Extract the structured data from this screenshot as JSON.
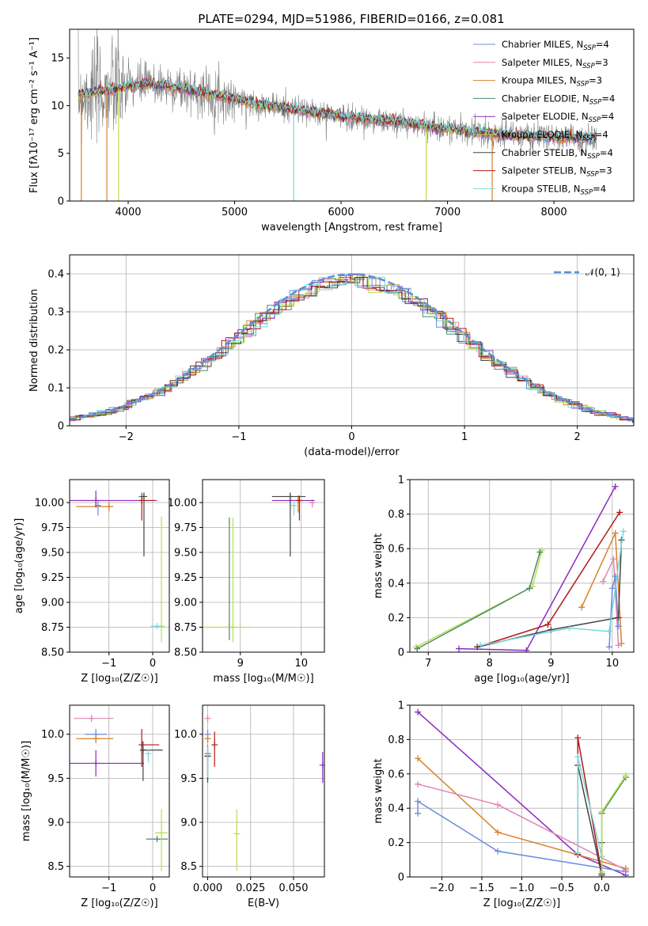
{
  "figure_title": "PLATE=0294, MJD=51986, FIBERID=0166, z=0.081",
  "colors": {
    "chabrier_miles": "#6a8fdb",
    "salpeter_miles": "#e383b4",
    "kroupa_miles": "#d9822b",
    "chabrier_elodie": "#4a8a6a",
    "salpeter_elodie": "#8a2bbf",
    "kroupa_elodie": "#b8e04a",
    "chabrier_stelib": "#444444",
    "salpeter_stelib": "#b01818",
    "kroupa_stelib": "#7ad8dc",
    "data": "#808080",
    "normal": "#5b8fd6"
  },
  "chart_data": [
    {
      "id": "spectrum",
      "type": "line",
      "title": "PLATE=0294, MJD=51986, FIBERID=0166, z=0.081",
      "xlabel": "wavelength [Angstrom, rest frame]",
      "ylabel": "Flux [fλ10⁻¹⁷ erg cm⁻² s⁻¹ A⁻¹]",
      "xlim": [
        3450,
        8750
      ],
      "ylim": [
        0,
        18
      ],
      "xticks": [
        4000,
        5000,
        6000,
        7000,
        8000
      ],
      "yticks": [
        0,
        5,
        10,
        15
      ],
      "grid": false,
      "legend_position": "top-right",
      "legend": [
        {
          "label": "Chabrier MILES, N",
          "sub": "SSP",
          "suffix": "=4",
          "color_key": "chabrier_miles"
        },
        {
          "label": "Salpeter MILES, N",
          "sub": "SSP",
          "suffix": "=3",
          "color_key": "salpeter_miles"
        },
        {
          "label": "Kroupa MILES, N",
          "sub": "SSP",
          "suffix": "=3",
          "color_key": "kroupa_miles"
        },
        {
          "label": "Chabrier ELODIE, N",
          "sub": "SSP",
          "suffix": "=4",
          "color_key": "chabrier_elodie"
        },
        {
          "label": "Salpeter ELODIE, N",
          "sub": "SSP",
          "suffix": "=4",
          "color_key": "salpeter_elodie"
        },
        {
          "label": "Kroupa ELODIE, N",
          "sub": "SSP",
          "suffix": "=4",
          "color_key": "kroupa_elodie"
        },
        {
          "label": "Chabrier STELIB, N",
          "sub": "SSP",
          "suffix": "=4",
          "color_key": "chabrier_stelib"
        },
        {
          "label": "Salpeter STELIB, N",
          "sub": "SSP",
          "suffix": "=3",
          "color_key": "salpeter_stelib"
        },
        {
          "label": "Kroupa STELIB, N",
          "sub": "SSP",
          "suffix": "=4",
          "color_key": "kroupa_stelib"
        }
      ],
      "continuum": {
        "x": [
          3550,
          3700,
          3850,
          4000,
          4200,
          4400,
          4600,
          4800,
          5000,
          5200,
          5400,
          5600,
          5800,
          6000,
          6200,
          6400,
          6600,
          6800,
          7000,
          7200,
          7400,
          7600,
          7800,
          8000,
          8300
        ],
        "y": [
          11.2,
          11.4,
          11.6,
          12.1,
          12.3,
          12.0,
          11.6,
          11.1,
          10.7,
          10.2,
          9.9,
          9.5,
          9.2,
          8.9,
          8.6,
          8.4,
          8.2,
          7.9,
          7.6,
          7.3,
          7.1,
          6.9,
          6.8,
          6.7,
          6.6
        ]
      }
    },
    {
      "id": "residuals",
      "type": "histogram",
      "xlabel": "(data-model)/error",
      "ylabel": "Normed distribution",
      "xlim": [
        -2.5,
        2.5
      ],
      "ylim": [
        0,
        0.45
      ],
      "xticks": [
        -2,
        -1,
        0,
        1,
        2
      ],
      "yticks": [
        0.0,
        0.1,
        0.2,
        0.3,
        0.4
      ],
      "grid": true,
      "legend_position": "top-right",
      "legend_label": "𝒩(0, 1)",
      "normal_mu": 0,
      "normal_sigma": 1
    },
    {
      "id": "age_vs_Z",
      "type": "scatter",
      "xlabel": "Z [log₁₀(Z/Z☉)]",
      "ylabel": "age  [log₁₀(age/yr)]",
      "xlim": [
        -1.9,
        0.38
      ],
      "ylim": [
        8.5,
        10.23
      ],
      "xticks": [
        -1,
        0
      ],
      "yticks": [
        8.5,
        8.75,
        9.0,
        9.25,
        9.5,
        9.75,
        10.0
      ],
      "ytick_labels": [
        "8.50",
        "8.75",
        "9.00",
        "9.25",
        "9.50",
        "9.75",
        "10.00"
      ],
      "grid": true,
      "points": [
        {
          "color_key": "chabrier_miles",
          "x": -1.25,
          "xerr": [
            0,
            0
          ],
          "y": 9.97,
          "yerr": [
            0.1,
            0.05
          ]
        },
        {
          "color_key": "salpeter_miles",
          "x": -1.3,
          "xerr": [
            0.5,
            0.2
          ],
          "y": 10.02,
          "yerr": [
            0,
            0
          ]
        },
        {
          "color_key": "kroupa_miles",
          "x": -1.0,
          "xerr": [
            0.75,
            0.1
          ],
          "y": 9.96,
          "yerr": [
            0.05,
            0.05
          ]
        },
        {
          "color_key": "chabrier_elodie",
          "x": -0.25,
          "xerr": [
            0,
            0
          ],
          "y": 10.06,
          "yerr": [
            0.02,
            0.04
          ]
        },
        {
          "color_key": "salpeter_elodie",
          "x": -1.3,
          "xerr": [
            0.6,
            1.4
          ],
          "y": 10.02,
          "yerr": [
            0.07,
            0.1
          ]
        },
        {
          "color_key": "kroupa_elodie",
          "x": 0.2,
          "xerr": [
            0.05,
            0.05
          ],
          "y": 8.76,
          "yerr": [
            0.16,
            1.1
          ]
        },
        {
          "color_key": "chabrier_stelib",
          "x": -0.2,
          "xerr": [
            0.05,
            0
          ],
          "y": 10.06,
          "yerr": [
            0.6,
            0.04
          ]
        },
        {
          "color_key": "salpeter_stelib",
          "x": -0.25,
          "xerr": [
            0,
            0.3
          ],
          "y": 10.02,
          "yerr": [
            0.2,
            0.04
          ]
        },
        {
          "color_key": "kroupa_stelib",
          "x": 0.1,
          "xerr": [
            0.15,
            0.1
          ],
          "y": 8.76,
          "yerr": [
            0,
            0
          ]
        }
      ]
    },
    {
      "id": "age_vs_mass",
      "type": "scatter",
      "xlabel": "mass [log₁₀(M/M☉)]",
      "xlim": [
        8.38,
        10.38
      ],
      "ylim": [
        8.5,
        10.23
      ],
      "xticks": [
        9,
        10
      ],
      "yticks": [
        8.5,
        8.75,
        9.0,
        9.25,
        9.5,
        9.75,
        10.0
      ],
      "ytick_labels": [
        "8.50",
        "8.75",
        "9.00",
        "9.25",
        "9.50",
        "9.75",
        "10.00"
      ],
      "grid": true,
      "points": [
        {
          "color_key": "chabrier_miles",
          "x": 9.95,
          "xerr": [
            0.05,
            0.05
          ],
          "y": 10.02,
          "yerr": [
            0,
            0
          ]
        },
        {
          "color_key": "salpeter_miles",
          "x": 10.18,
          "xerr": [
            0.03,
            0.03
          ],
          "y": 10.0,
          "yerr": [
            0.05,
            0.03
          ]
        },
        {
          "color_key": "kroupa_miles",
          "x": 9.95,
          "xerr": [
            0,
            0
          ],
          "y": 10.02,
          "yerr": [
            0.12,
            0.05
          ]
        },
        {
          "color_key": "chabrier_elodie",
          "x": 8.82,
          "xerr": [
            0,
            0
          ],
          "y": 8.75,
          "yerr": [
            0.13,
            1.1
          ]
        },
        {
          "color_key": "salpeter_elodie",
          "x": 9.82,
          "xerr": [
            0.3,
            0.4
          ],
          "y": 10.02,
          "yerr": [
            0,
            0
          ]
        },
        {
          "color_key": "kroupa_elodie",
          "x": 8.88,
          "xerr": [
            0.5,
            0.3
          ],
          "y": 8.75,
          "yerr": [
            0.15,
            1.1
          ]
        },
        {
          "color_key": "chabrier_stelib",
          "x": 9.82,
          "xerr": [
            0.3,
            0.25
          ],
          "y": 10.06,
          "yerr": [
            0.6,
            0.04
          ]
        },
        {
          "color_key": "salpeter_stelib",
          "x": 9.97,
          "xerr": [
            0,
            0
          ],
          "y": 10.02,
          "yerr": [
            0.2,
            0.05
          ]
        },
        {
          "color_key": "kroupa_stelib",
          "x": 9.88,
          "xerr": [
            0,
            0
          ],
          "y": 9.97,
          "yerr": [
            0.1,
            0.03
          ]
        }
      ]
    },
    {
      "id": "mass_weight_vs_age",
      "type": "line",
      "xlabel": "age  [log₁₀(age/yr)]",
      "ylabel": "mass weight",
      "xlim": [
        6.7,
        10.35
      ],
      "ylim": [
        0,
        1
      ],
      "xticks": [
        7,
        8,
        9,
        10
      ],
      "yticks": [
        0.0,
        0.2,
        0.4,
        0.6,
        0.8,
        1.0
      ],
      "grid": true,
      "series": [
        {
          "color_key": "kroupa_elodie",
          "x": [
            6.8,
            8.7,
            8.85
          ],
          "y": [
            0.03,
            0.38,
            0.59
          ]
        },
        {
          "color_key": "chabrier_elodie",
          "x": [
            6.82,
            8.65,
            8.82
          ],
          "y": [
            0.02,
            0.37,
            0.58
          ]
        },
        {
          "color_key": "salpeter_elodie",
          "x": [
            7.5,
            8.6,
            10.05
          ],
          "y": [
            0.02,
            0.01,
            0.96
          ]
        },
        {
          "color_key": "salpeter_stelib",
          "x": [
            7.8,
            8.95,
            10.12
          ],
          "y": [
            0.03,
            0.16,
            0.81
          ]
        },
        {
          "color_key": "kroupa_miles",
          "x": [
            9.5,
            10.05,
            10.15
          ],
          "y": [
            0.26,
            0.69,
            0.05
          ]
        },
        {
          "color_key": "salpeter_miles",
          "x": [
            9.85,
            10.02,
            10.1
          ],
          "y": [
            0.41,
            0.54,
            0.04
          ]
        },
        {
          "color_key": "chabrier_miles",
          "x": [
            9.95,
            10.0,
            10.05,
            10.1
          ],
          "y": [
            0.03,
            0.37,
            0.44,
            0.15
          ]
        },
        {
          "color_key": "chabrier_stelib",
          "x": [
            7.8,
            9.0,
            10.1,
            10.15
          ],
          "y": [
            0.03,
            0.13,
            0.2,
            0.65
          ]
        },
        {
          "color_key": "kroupa_stelib",
          "x": [
            7.85,
            9.3,
            9.95,
            10.18
          ],
          "y": [
            0.04,
            0.14,
            0.12,
            0.7
          ]
        }
      ]
    },
    {
      "id": "mass_vs_Z",
      "type": "scatter",
      "xlabel": "Z [log₁₀(Z/Z☉)]",
      "ylabel": "mass [log₁₀(M/M☉)]",
      "xlim": [
        -1.9,
        0.38
      ],
      "ylim": [
        8.38,
        10.33
      ],
      "xticks": [
        -1,
        0
      ],
      "yticks": [
        8.5,
        9.0,
        9.5,
        10.0
      ],
      "ytick_labels": [
        "8.5",
        "9.0",
        "9.5",
        "10.0"
      ],
      "grid": true,
      "points": [
        {
          "color_key": "chabrier_miles",
          "x": -1.3,
          "xerr": [
            0.25,
            0.25
          ],
          "y": 10.0,
          "yerr": [
            0.06,
            0.06
          ]
        },
        {
          "color_key": "salpeter_miles",
          "x": -1.4,
          "xerr": [
            0.4,
            0.5
          ],
          "y": 10.18,
          "yerr": [
            0.04,
            0.04
          ]
        },
        {
          "color_key": "kroupa_miles",
          "x": -1.3,
          "xerr": [
            0.45,
            0.4
          ],
          "y": 9.95,
          "yerr": [
            0.05,
            0.05
          ]
        },
        {
          "color_key": "chabrier_elodie",
          "x": 0.1,
          "xerr": [
            0.25,
            0.25
          ],
          "y": 8.81,
          "yerr": [
            0,
            0
          ]
        },
        {
          "color_key": "salpeter_elodie",
          "x": -1.3,
          "xerr": [
            0.6,
            1.1
          ],
          "y": 9.67,
          "yerr": [
            0.15,
            0.15
          ]
        },
        {
          "color_key": "kroupa_elodie",
          "x": 0.2,
          "xerr": [
            0.15,
            0.15
          ],
          "y": 8.88,
          "yerr": [
            0.43,
            0.27
          ]
        },
        {
          "color_key": "chabrier_stelib",
          "x": -0.22,
          "xerr": [
            0.04,
            0.45
          ],
          "y": 9.82,
          "yerr": [
            0.35,
            0.1
          ]
        },
        {
          "color_key": "salpeter_stelib",
          "x": -0.25,
          "xerr": [
            0,
            0.4
          ],
          "y": 9.88,
          "yerr": [
            0.25,
            0.18
          ]
        },
        {
          "color_key": "kroupa_stelib",
          "x": -0.1,
          "xerr": [
            0,
            0
          ],
          "y": 9.78,
          "yerr": [
            0.1,
            0.05
          ]
        }
      ]
    },
    {
      "id": "mass_vs_ebv",
      "type": "scatter",
      "xlabel": "E(B-V)",
      "xlim": [
        -0.003,
        0.068
      ],
      "ylim": [
        8.38,
        10.33
      ],
      "xticks": [
        0.0,
        0.025,
        0.05
      ],
      "xtick_labels": [
        "0.000",
        "0.025",
        "0.050"
      ],
      "yticks": [
        8.5,
        9.0,
        9.5,
        10.0
      ],
      "ytick_labels": [
        "8.5",
        "9.0",
        "9.5",
        "10.0"
      ],
      "grid": true,
      "points": [
        {
          "color_key": "chabrier_miles",
          "x": 0.0,
          "xerr": [
            0,
            0
          ],
          "y": 10.0,
          "yerr": [
            0.05,
            0.05
          ]
        },
        {
          "color_key": "salpeter_miles",
          "x": 0.0,
          "xerr": [
            0,
            0
          ],
          "y": 10.18,
          "yerr": [
            0.04,
            0.04
          ]
        },
        {
          "color_key": "kroupa_miles",
          "x": 0.0,
          "xerr": [
            0,
            0
          ],
          "y": 9.95,
          "yerr": [
            0.05,
            0.05
          ]
        },
        {
          "color_key": "chabrier_elodie",
          "x": 0.0,
          "xerr": [
            0,
            0
          ],
          "y": 9.78,
          "yerr": [
            0.3,
            0.1
          ]
        },
        {
          "color_key": "salpeter_elodie",
          "x": 0.067,
          "xerr": [
            0,
            0
          ],
          "y": 9.65,
          "yerr": [
            0.2,
            0.15
          ]
        },
        {
          "color_key": "kroupa_elodie",
          "x": 0.017,
          "xerr": [
            0,
            0
          ],
          "y": 8.87,
          "yerr": [
            0.42,
            0.28
          ]
        },
        {
          "color_key": "chabrier_stelib",
          "x": 0.0,
          "xerr": [
            0,
            0
          ],
          "y": 9.75,
          "yerr": [
            0.3,
            0.1
          ]
        },
        {
          "color_key": "salpeter_stelib",
          "x": 0.004,
          "xerr": [
            0,
            0
          ],
          "y": 9.88,
          "yerr": [
            0.25,
            0.15
          ]
        },
        {
          "color_key": "kroupa_stelib",
          "x": 0.0,
          "xerr": [
            0,
            0
          ],
          "y": 9.76,
          "yerr": [
            0.25,
            0.1
          ]
        }
      ]
    },
    {
      "id": "mass_weight_vs_Z",
      "type": "line",
      "xlabel": "Z [log₁₀(Z/Z☉)]",
      "ylabel": "mass weight",
      "xlim": [
        -2.4,
        0.4
      ],
      "ylim": [
        0,
        1
      ],
      "xticks": [
        -2.0,
        -1.5,
        -1.0,
        -0.5,
        0.0
      ],
      "xtick_labels": [
        "−2.0",
        "−1.5",
        "−1.0",
        "−0.5",
        "0.0"
      ],
      "yticks": [
        0.0,
        0.2,
        0.4,
        0.6,
        0.8,
        1.0
      ],
      "grid": true,
      "series": [
        {
          "color_key": "salpeter_elodie",
          "x": [
            -2.3,
            -0.3,
            0.3
          ],
          "y": [
            0.96,
            0.13,
            0.01
          ]
        },
        {
          "color_key": "kroupa_miles",
          "x": [
            -2.3,
            -1.3,
            0.3
          ],
          "y": [
            0.69,
            0.26,
            0.05
          ]
        },
        {
          "color_key": "salpeter_miles",
          "x": [
            -2.3,
            -1.3,
            0.3
          ],
          "y": [
            0.54,
            0.42,
            0.04
          ]
        },
        {
          "color_key": "chabrier_miles",
          "x": [
            -2.3,
            -2.3,
            -1.3,
            0.3
          ],
          "y": [
            0.37,
            0.44,
            0.15,
            0.03
          ]
        },
        {
          "color_key": "salpeter_stelib",
          "x": [
            -0.3,
            -0.3,
            0.0
          ],
          "y": [
            0.13,
            0.81,
            0.02
          ]
        },
        {
          "color_key": "chabrier_stelib",
          "x": [
            -0.3,
            0.0,
            0.0
          ],
          "y": [
            0.65,
            0.01,
            0.2
          ]
        },
        {
          "color_key": "kroupa_stelib",
          "x": [
            -0.3,
            -0.3,
            0.0
          ],
          "y": [
            0.14,
            0.7,
            0.12
          ]
        },
        {
          "color_key": "chabrier_elodie",
          "x": [
            0.0,
            0.0,
            0.3
          ],
          "y": [
            0.02,
            0.37,
            0.58
          ]
        },
        {
          "color_key": "kroupa_elodie",
          "x": [
            0.0,
            0.0,
            0.3
          ],
          "y": [
            0.03,
            0.38,
            0.59
          ]
        }
      ]
    }
  ]
}
